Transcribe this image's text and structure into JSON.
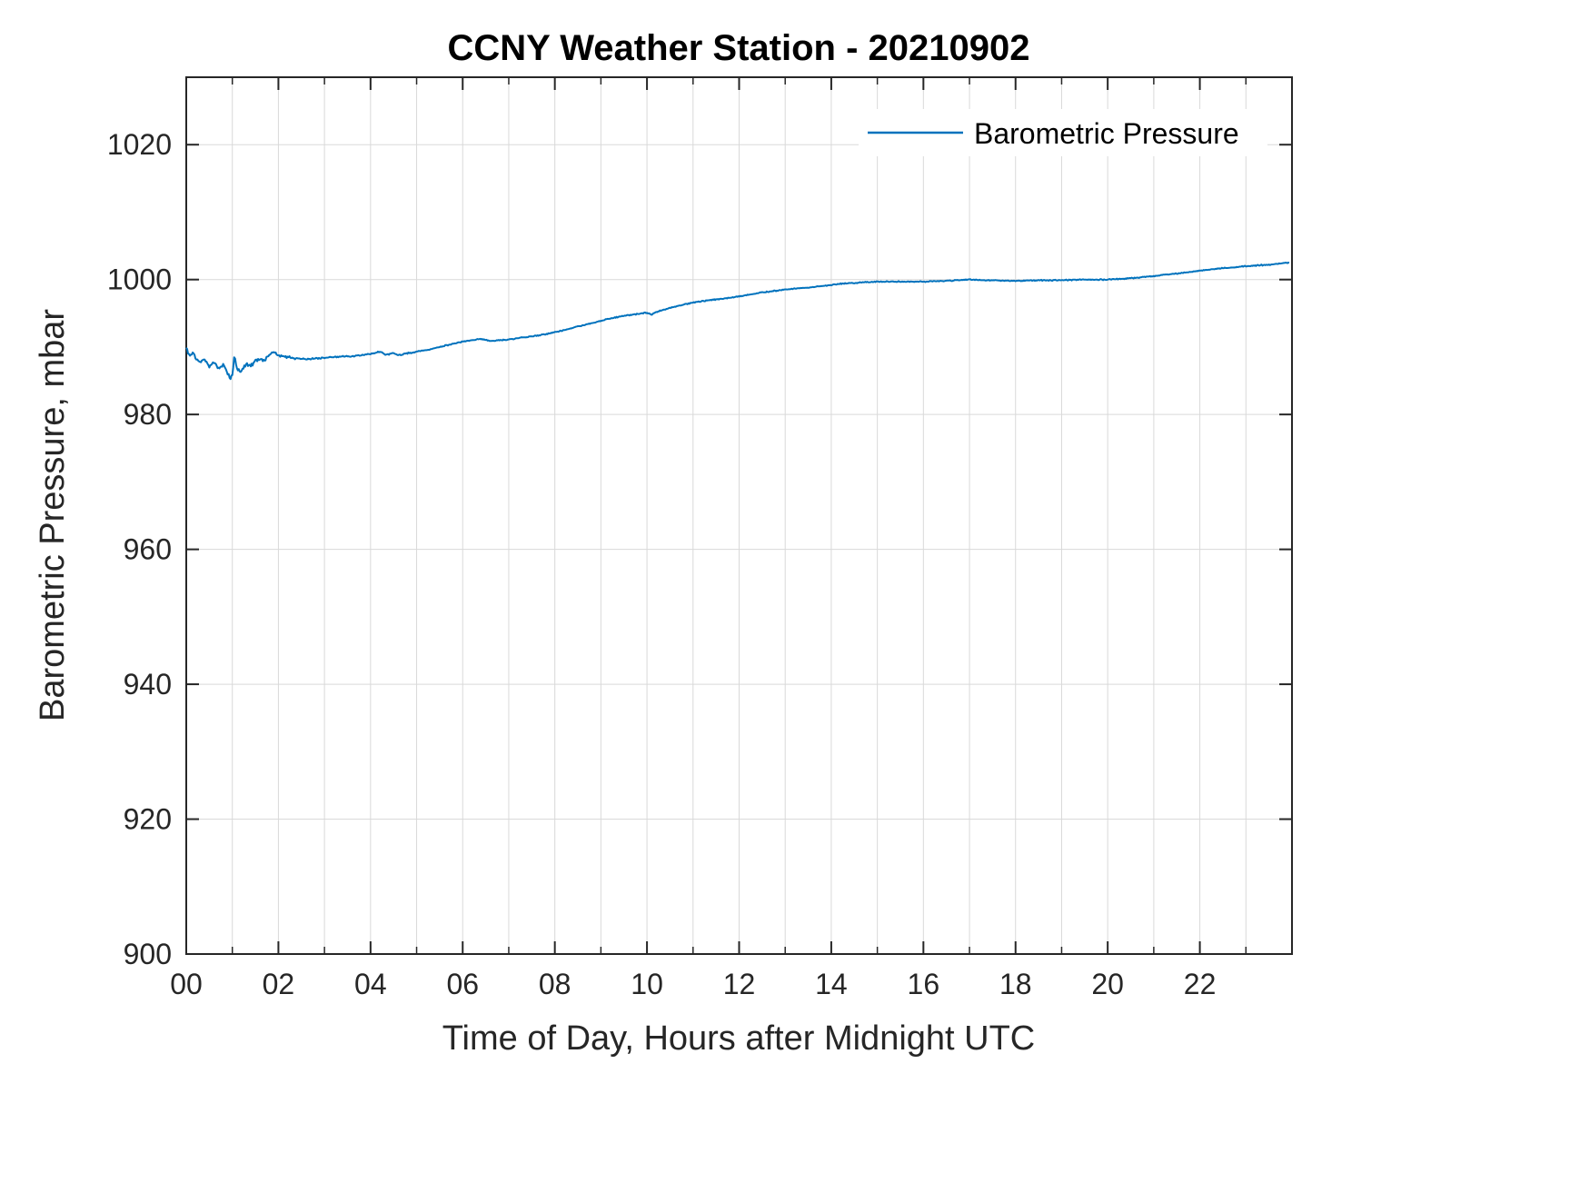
{
  "chart_data": {
    "type": "line",
    "title": "CCNY Weather Station - 20210902",
    "xlabel": "Time of Day, Hours after Midnight UTC",
    "ylabel": "Barometric Pressure, mbar",
    "xlim": [
      0,
      24
    ],
    "ylim": [
      900,
      1030
    ],
    "grid": true,
    "xminor_step": 1,
    "xticks": {
      "values": [
        0,
        2,
        4,
        6,
        8,
        10,
        12,
        14,
        16,
        18,
        20,
        22
      ],
      "labels": [
        "00",
        "02",
        "04",
        "06",
        "08",
        "10",
        "12",
        "14",
        "16",
        "18",
        "20",
        "22"
      ]
    },
    "yticks": {
      "values": [
        900,
        920,
        940,
        960,
        980,
        1000,
        1020
      ],
      "labels": [
        "900",
        "920",
        "940",
        "960",
        "980",
        "1000",
        "1020"
      ]
    },
    "colors": {
      "line": "#0072BD",
      "grid": "#d9d9d9",
      "axis": "#262626"
    },
    "legend": {
      "position": "northeast",
      "entries": [
        "Barometric Pressure"
      ]
    },
    "series": [
      {
        "name": "Barometric Pressure",
        "color": "#0072BD",
        "units": "mbar",
        "noise_mbar": [
          [
            1.7,
            0.35
          ],
          [
            2.4,
            0.2
          ],
          [
            5.0,
            0.12
          ],
          [
            24.0,
            0.09
          ]
        ],
        "points": [
          [
            0.0,
            989.8
          ],
          [
            0.05,
            989.2
          ],
          [
            0.1,
            988.6
          ],
          [
            0.15,
            989.3
          ],
          [
            0.2,
            988.2
          ],
          [
            0.3,
            987.6
          ],
          [
            0.4,
            988.3
          ],
          [
            0.5,
            987.2
          ],
          [
            0.6,
            987.8
          ],
          [
            0.7,
            986.9
          ],
          [
            0.8,
            987.4
          ],
          [
            0.9,
            986.2
          ],
          [
            0.95,
            985.3
          ],
          [
            1.0,
            986.0
          ],
          [
            1.05,
            988.7
          ],
          [
            1.1,
            986.8
          ],
          [
            1.2,
            986.3
          ],
          [
            1.3,
            987.6
          ],
          [
            1.4,
            987.2
          ],
          [
            1.5,
            987.9
          ],
          [
            1.6,
            988.3
          ],
          [
            1.7,
            988.0
          ],
          [
            1.8,
            988.9
          ],
          [
            1.9,
            989.2
          ],
          [
            2.0,
            988.8
          ],
          [
            2.2,
            988.5
          ],
          [
            2.4,
            988.3
          ],
          [
            2.6,
            988.2
          ],
          [
            2.8,
            988.3
          ],
          [
            3.0,
            988.4
          ],
          [
            3.2,
            988.5
          ],
          [
            3.4,
            988.6
          ],
          [
            3.6,
            988.6
          ],
          [
            3.8,
            988.8
          ],
          [
            4.0,
            989.0
          ],
          [
            4.2,
            989.3
          ],
          [
            4.35,
            988.8
          ],
          [
            4.5,
            989.1
          ],
          [
            4.6,
            988.8
          ],
          [
            4.75,
            989.0
          ],
          [
            5.0,
            989.3
          ],
          [
            5.25,
            989.6
          ],
          [
            5.5,
            990.0
          ],
          [
            5.75,
            990.4
          ],
          [
            6.0,
            990.8
          ],
          [
            6.2,
            991.0
          ],
          [
            6.4,
            991.2
          ],
          [
            6.6,
            990.9
          ],
          [
            6.8,
            991.0
          ],
          [
            7.0,
            991.1
          ],
          [
            7.2,
            991.3
          ],
          [
            7.4,
            991.5
          ],
          [
            7.6,
            991.7
          ],
          [
            7.8,
            991.9
          ],
          [
            8.0,
            992.2
          ],
          [
            8.2,
            992.5
          ],
          [
            8.4,
            992.9
          ],
          [
            8.6,
            993.2
          ],
          [
            8.8,
            993.5
          ],
          [
            9.0,
            993.9
          ],
          [
            9.2,
            994.2
          ],
          [
            9.4,
            994.5
          ],
          [
            9.6,
            994.7
          ],
          [
            9.8,
            994.9
          ],
          [
            10.0,
            995.1
          ],
          [
            10.1,
            994.8
          ],
          [
            10.2,
            995.2
          ],
          [
            10.4,
            995.6
          ],
          [
            10.6,
            996.0
          ],
          [
            10.8,
            996.3
          ],
          [
            11.0,
            996.6
          ],
          [
            11.2,
            996.8
          ],
          [
            11.4,
            997.0
          ],
          [
            11.6,
            997.1
          ],
          [
            11.8,
            997.3
          ],
          [
            12.0,
            997.5
          ],
          [
            12.25,
            997.8
          ],
          [
            12.5,
            998.1
          ],
          [
            12.75,
            998.3
          ],
          [
            13.0,
            998.5
          ],
          [
            13.25,
            998.7
          ],
          [
            13.5,
            998.8
          ],
          [
            13.75,
            999.0
          ],
          [
            14.0,
            999.2
          ],
          [
            14.25,
            999.4
          ],
          [
            14.5,
            999.5
          ],
          [
            14.75,
            999.6
          ],
          [
            15.0,
            999.7
          ],
          [
            15.5,
            999.7
          ],
          [
            16.0,
            999.7
          ],
          [
            16.5,
            999.8
          ],
          [
            17.0,
            1000.0
          ],
          [
            17.25,
            999.9
          ],
          [
            17.5,
            999.9
          ],
          [
            18.0,
            999.8
          ],
          [
            18.5,
            999.9
          ],
          [
            19.0,
            999.9
          ],
          [
            19.5,
            1000.0
          ],
          [
            20.0,
            1000.0
          ],
          [
            20.5,
            1000.2
          ],
          [
            21.0,
            1000.5
          ],
          [
            21.5,
            1000.9
          ],
          [
            22.0,
            1001.3
          ],
          [
            22.5,
            1001.7
          ],
          [
            23.0,
            1002.0
          ],
          [
            23.5,
            1002.2
          ],
          [
            23.95,
            1002.5
          ]
        ]
      }
    ]
  }
}
